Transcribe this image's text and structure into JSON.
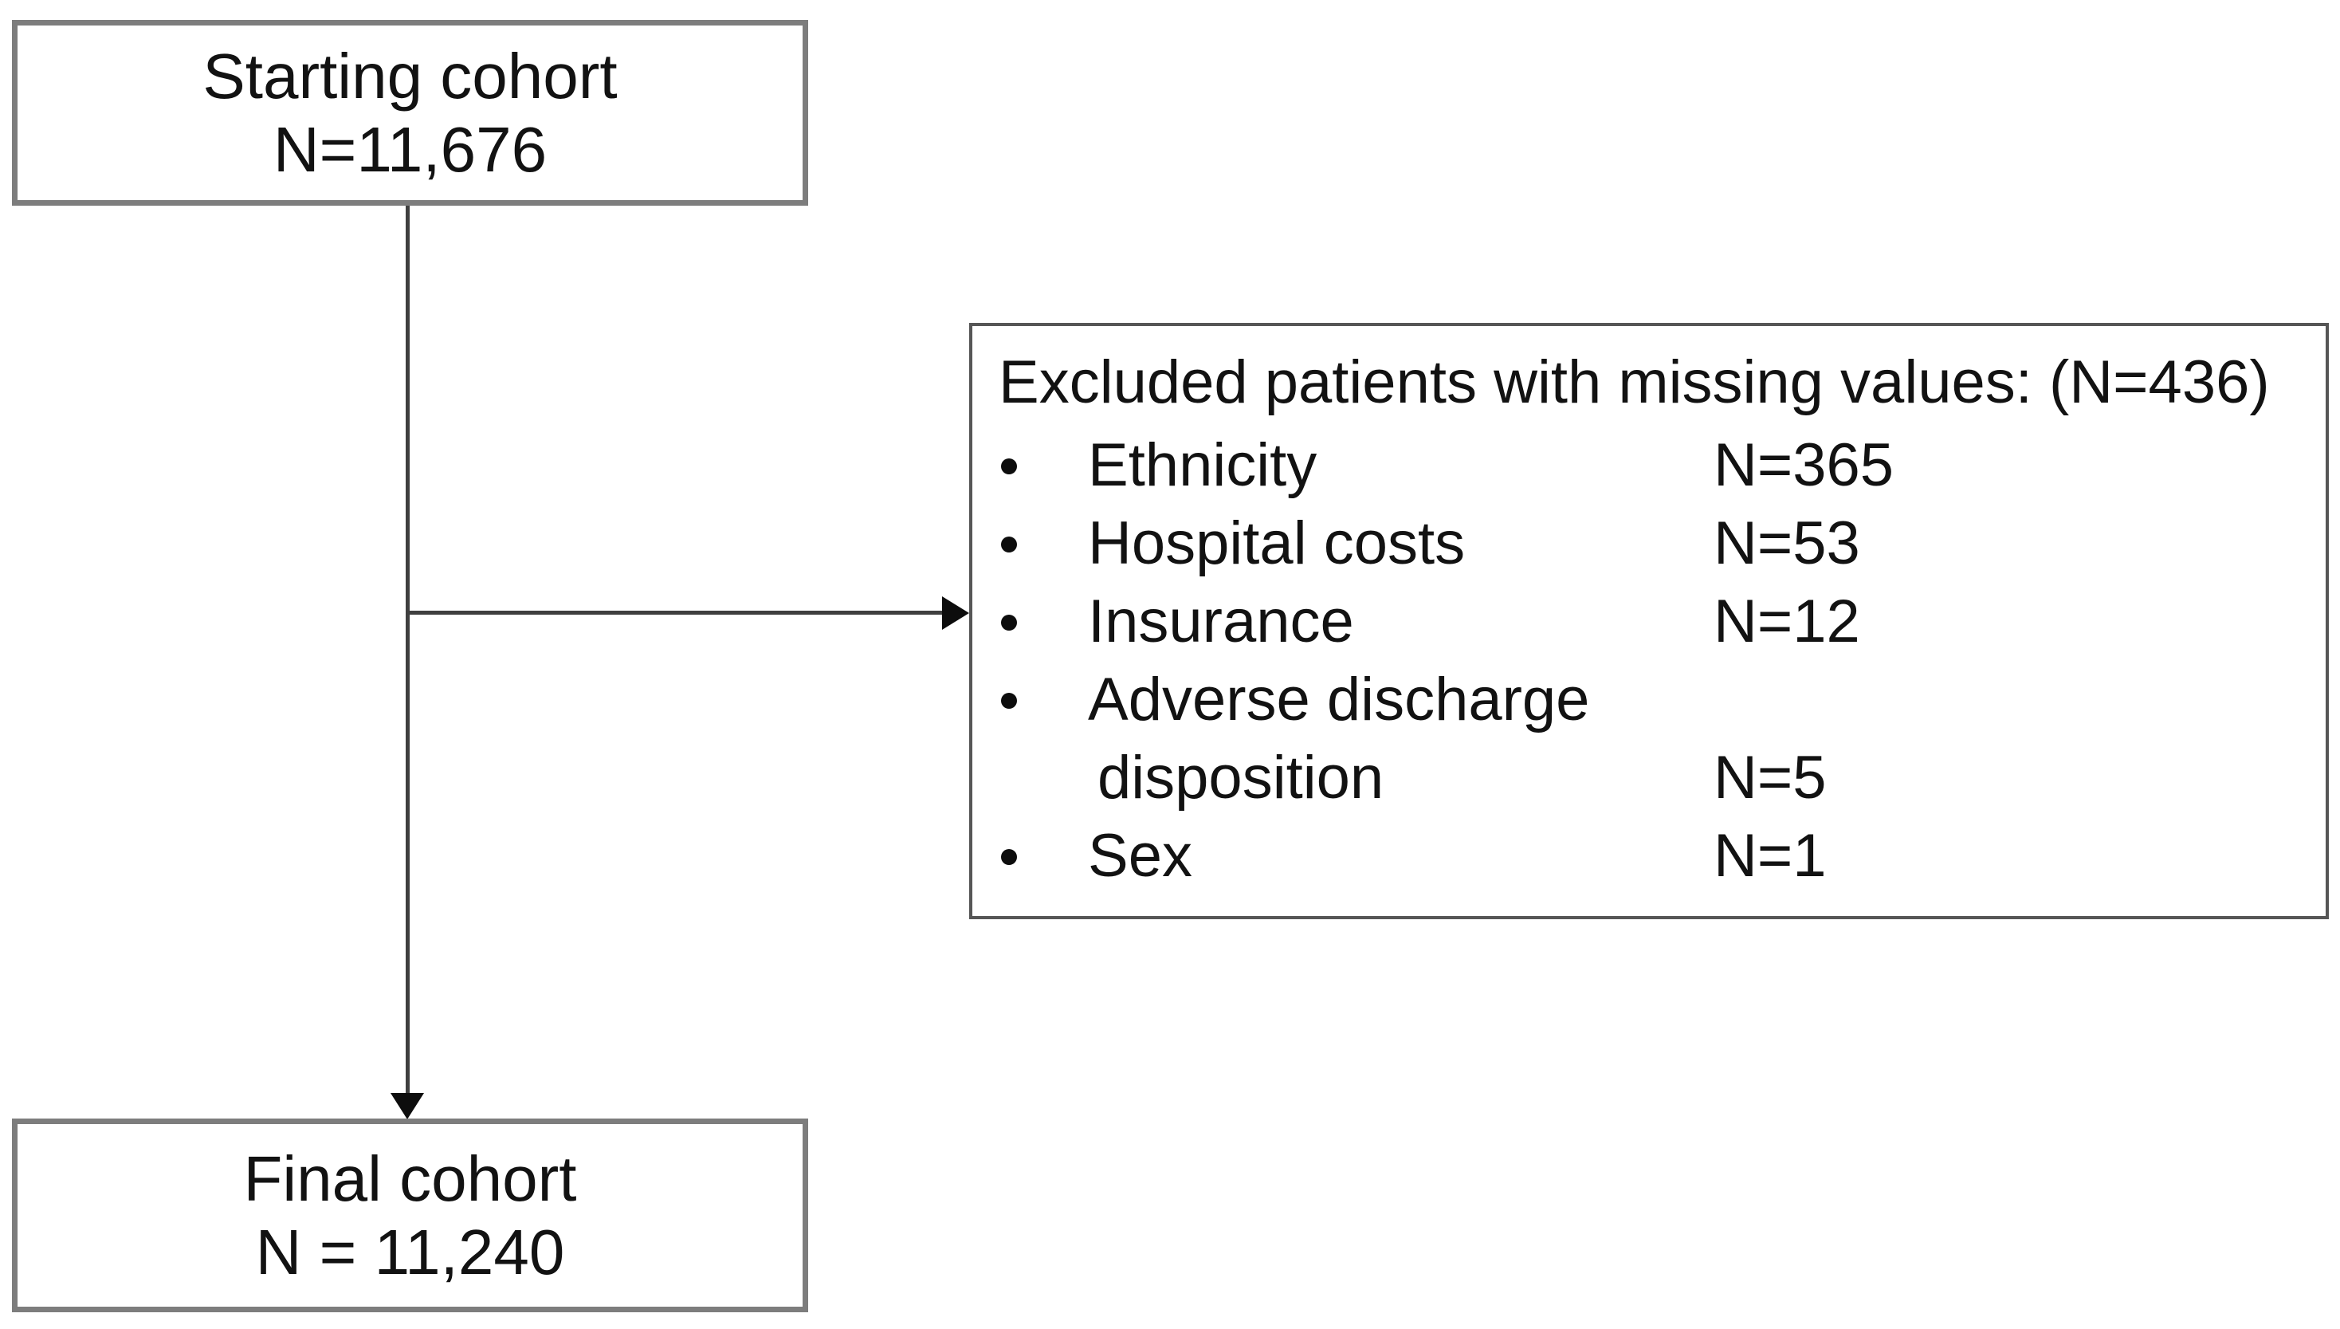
{
  "diagram": {
    "kind": "cohort-selection-flowchart",
    "colors": {
      "background": "#ffffff",
      "text": "#121212",
      "outer_box_border": "#7d7d7d",
      "excluded_box_border": "#565656",
      "connector_line": "#3f3f3f",
      "arrowhead": "#0d0d0d"
    },
    "starting": {
      "line1": "Starting cohort",
      "line2": "N=11,676"
    },
    "final": {
      "line1": "Final cohort",
      "line2": "N = 11,240"
    },
    "excluded": {
      "title": "Excluded patients with missing values: (N=436)",
      "items": [
        {
          "label": "Ethnicity",
          "value": "N=365"
        },
        {
          "label": "Hospital costs",
          "value": "N=53"
        },
        {
          "label": "Insurance",
          "value": "N=12"
        },
        {
          "label": "Adverse discharge",
          "label2": "disposition",
          "value": "N=5"
        },
        {
          "label": "Sex",
          "value": "N=1"
        }
      ]
    }
  }
}
